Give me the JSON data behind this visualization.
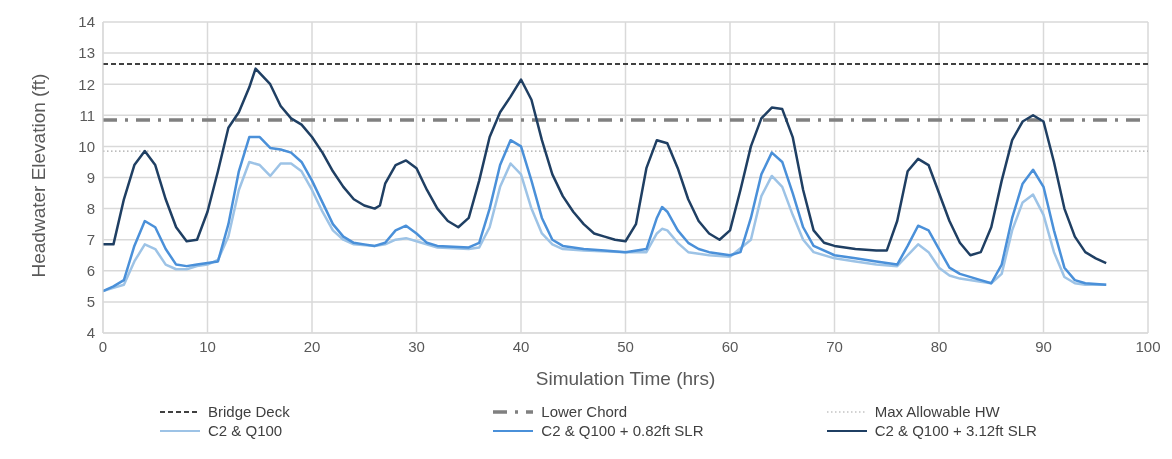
{
  "chart_data": {
    "type": "line",
    "xlabel": "Simulation Time (hrs)",
    "ylabel": "Headwater Elevation (ft)",
    "xlim": [
      0,
      100
    ],
    "xticks": [
      0,
      10,
      20,
      30,
      40,
      50,
      60,
      70,
      80,
      90,
      100
    ],
    "ylim": [
      4,
      14
    ],
    "yticks": [
      4,
      5,
      6,
      7,
      8,
      9,
      10,
      11,
      12,
      13,
      14
    ],
    "grid": true,
    "legend": "bottom",
    "marker": "none",
    "ref_lines": [
      {
        "axis": "y",
        "value": 12.65,
        "label": "Bridge Deck",
        "color": "#404040",
        "line_style": "dashed"
      },
      {
        "axis": "y",
        "value": 10.85,
        "label": "Lower Chord",
        "color": "#808080",
        "line_style": "dashdot"
      },
      {
        "axis": "y",
        "value": 9.85,
        "label": "Max Allowable HW",
        "color": "#a6a6a6",
        "line_style": "dotted"
      }
    ],
    "series": [
      {
        "name": "C2 & Q100",
        "color": "#9dc3e6",
        "x": [
          0,
          1,
          2,
          3,
          4,
          5,
          6,
          7,
          8,
          9,
          10,
          11,
          12,
          13,
          14,
          15,
          16,
          17,
          18,
          19,
          20,
          21,
          22,
          23,
          24,
          26,
          27,
          28,
          29,
          30,
          32,
          35,
          36,
          37,
          38,
          39,
          40,
          41,
          42,
          43,
          44,
          46,
          50,
          52,
          53,
          53.5,
          54,
          55,
          56,
          58,
          60,
          62,
          63,
          64,
          65,
          66,
          67,
          68,
          70,
          72,
          74,
          76,
          77,
          78,
          79,
          80,
          81,
          82,
          84,
          85,
          86,
          87,
          88,
          89,
          90,
          91,
          92,
          93,
          94,
          96
        ],
        "values": [
          5.35,
          5.45,
          5.55,
          6.3,
          6.85,
          6.7,
          6.2,
          6.05,
          6.05,
          6.15,
          6.2,
          6.35,
          7.1,
          8.6,
          9.5,
          9.4,
          9.05,
          9.45,
          9.45,
          9.2,
          8.6,
          7.9,
          7.3,
          7.0,
          6.85,
          6.8,
          6.85,
          7.0,
          7.05,
          6.95,
          6.75,
          6.7,
          6.75,
          7.4,
          8.7,
          9.45,
          9.1,
          8.0,
          7.2,
          6.85,
          6.7,
          6.65,
          6.6,
          6.6,
          7.2,
          7.35,
          7.3,
          6.9,
          6.6,
          6.5,
          6.45,
          7.0,
          8.4,
          9.05,
          8.7,
          7.8,
          7.0,
          6.6,
          6.4,
          6.3,
          6.2,
          6.15,
          6.5,
          6.85,
          6.6,
          6.1,
          5.85,
          5.75,
          5.65,
          5.6,
          5.9,
          7.3,
          8.2,
          8.45,
          7.8,
          6.6,
          5.8,
          5.6,
          5.55,
          5.55
        ]
      },
      {
        "name": "C2 & Q100 + 0.82ft SLR",
        "color": "#4a90d9",
        "x": [
          0,
          1,
          2,
          3,
          4,
          5,
          6,
          7,
          8,
          9,
          10,
          11,
          12,
          13,
          14,
          15,
          16,
          17,
          18,
          19,
          20,
          21,
          22,
          23,
          24,
          25,
          26,
          27,
          28,
          29,
          30,
          31,
          32,
          35,
          36,
          37,
          38,
          39,
          40,
          41,
          42,
          43,
          44,
          46,
          48,
          50,
          52,
          53,
          53.5,
          54,
          55,
          56,
          57,
          58,
          60,
          61,
          62,
          63,
          64,
          65,
          66,
          67,
          68,
          70,
          72,
          74,
          76,
          77,
          78,
          79,
          80,
          81,
          82,
          84,
          85,
          86,
          87,
          88,
          89,
          90,
          91,
          92,
          93,
          94,
          96
        ],
        "values": [
          5.35,
          5.5,
          5.7,
          6.8,
          7.6,
          7.4,
          6.7,
          6.2,
          6.15,
          6.2,
          6.25,
          6.3,
          7.5,
          9.2,
          10.3,
          10.3,
          9.95,
          9.9,
          9.8,
          9.5,
          8.9,
          8.2,
          7.5,
          7.1,
          6.9,
          6.85,
          6.8,
          6.9,
          7.3,
          7.45,
          7.2,
          6.9,
          6.8,
          6.75,
          6.9,
          8.0,
          9.4,
          10.2,
          10.0,
          8.9,
          7.7,
          7.0,
          6.8,
          6.7,
          6.65,
          6.6,
          6.7,
          7.7,
          8.05,
          7.9,
          7.3,
          6.9,
          6.7,
          6.6,
          6.5,
          6.6,
          7.7,
          9.1,
          9.8,
          9.5,
          8.5,
          7.4,
          6.8,
          6.5,
          6.4,
          6.3,
          6.2,
          6.8,
          7.45,
          7.3,
          6.7,
          6.1,
          5.9,
          5.7,
          5.6,
          6.2,
          7.7,
          8.8,
          9.25,
          8.7,
          7.3,
          6.1,
          5.7,
          5.6,
          5.55
        ]
      },
      {
        "name": "C2 & Q100 + 3.12ft SLR",
        "color": "#1f3f63",
        "x": [
          0,
          1,
          2,
          3,
          4,
          5,
          6,
          7,
          8,
          9,
          10,
          11,
          12,
          13,
          14,
          14.6,
          16,
          17,
          18,
          19,
          20,
          21,
          22,
          23,
          24,
          25,
          26,
          26.5,
          27,
          28,
          29,
          30,
          31,
          32,
          33,
          34,
          35,
          36,
          37,
          38,
          39,
          40,
          41,
          42,
          43,
          44,
          45,
          46,
          47,
          48,
          49,
          50,
          51,
          52,
          53,
          54,
          55,
          56,
          57,
          58,
          59,
          60,
          61,
          62,
          63,
          64,
          65,
          66,
          67,
          68,
          69,
          70,
          72,
          74,
          75,
          76,
          77,
          78,
          79,
          80,
          81,
          82,
          83,
          84,
          85,
          86,
          87,
          88,
          89,
          90,
          91,
          92,
          93,
          94,
          95,
          96
        ],
        "values": [
          6.85,
          6.85,
          8.3,
          9.4,
          9.85,
          9.4,
          8.3,
          7.4,
          6.95,
          7.0,
          7.9,
          9.2,
          10.6,
          11.1,
          11.9,
          12.5,
          12.0,
          11.3,
          10.9,
          10.7,
          10.3,
          9.8,
          9.2,
          8.7,
          8.3,
          8.1,
          8.0,
          8.1,
          8.8,
          9.4,
          9.55,
          9.3,
          8.6,
          8.0,
          7.6,
          7.4,
          7.7,
          8.9,
          10.3,
          11.1,
          11.6,
          12.15,
          11.5,
          10.2,
          9.1,
          8.4,
          7.9,
          7.5,
          7.2,
          7.1,
          7.0,
          6.95,
          7.5,
          9.3,
          10.2,
          10.1,
          9.3,
          8.3,
          7.6,
          7.2,
          7.0,
          7.3,
          8.6,
          10.0,
          10.9,
          11.25,
          11.2,
          10.3,
          8.6,
          7.3,
          6.9,
          6.8,
          6.7,
          6.65,
          6.65,
          7.6,
          9.2,
          9.6,
          9.4,
          8.5,
          7.6,
          6.9,
          6.5,
          6.6,
          7.4,
          8.9,
          10.2,
          10.8,
          11.0,
          10.8,
          9.5,
          8.0,
          7.1,
          6.6,
          6.4,
          6.25
        ]
      }
    ]
  }
}
